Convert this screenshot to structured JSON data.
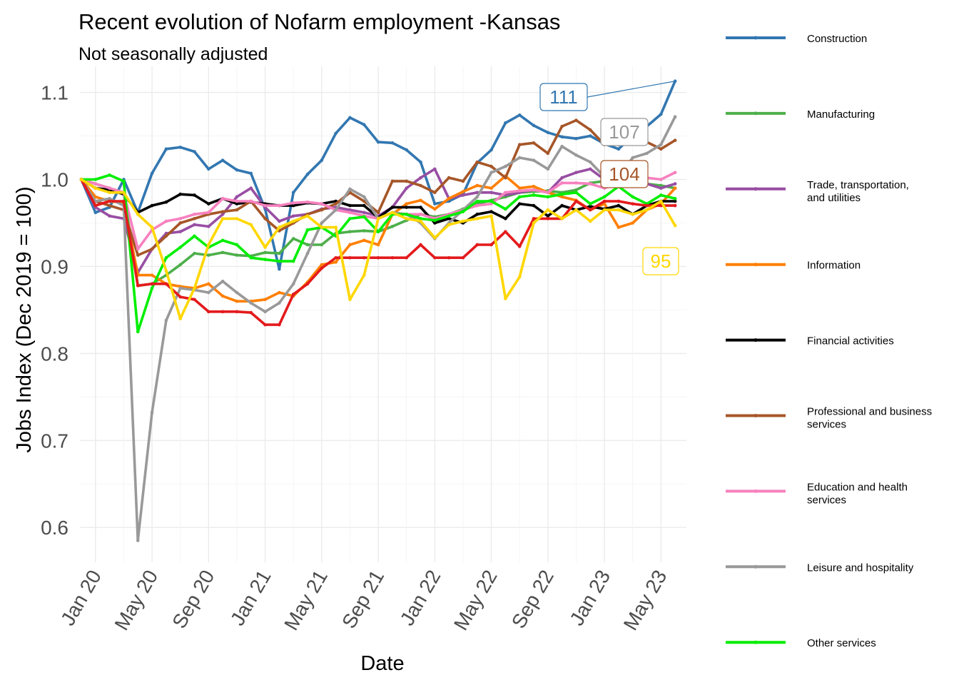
{
  "chart_data": {
    "type": "line",
    "title": "Recent evolution of Nofarm employment -Kansas",
    "subtitle": "Not seasonally adjusted",
    "xlabel": "Date",
    "ylabel": "Jobs Index (Dec 2019 = 100)",
    "ylim": [
      0.56,
      1.13
    ],
    "yticks": [
      0.6,
      0.7,
      0.8,
      0.9,
      1.0,
      1.1
    ],
    "ytick_labels": [
      "0.6",
      "0.7",
      "0.8",
      "0.9",
      "1.0",
      "1.1"
    ],
    "xticks": [
      1,
      5,
      9,
      13,
      17,
      21,
      25,
      29,
      33,
      37,
      41
    ],
    "xtick_labels": [
      "Jan 20",
      "May 20",
      "Sep 20",
      "Jan 21",
      "May 21",
      "Sep 21",
      "Jan 22",
      "May 22",
      "Sep 22",
      "Jan 23",
      "May 23"
    ],
    "xlim": [
      -0.1,
      42.8
    ],
    "x_index": "0 = Dec 2019, 1 = Jan 2020, monthly through 42 = Jun 2023",
    "grid": true,
    "legend_position": "right",
    "series": [
      {
        "name": "Construction",
        "color": "#3277B1",
        "end_label": "111",
        "values": [
          1.0,
          0.962,
          0.968,
          1.0,
          0.962,
          1.007,
          1.035,
          1.037,
          1.032,
          1.012,
          1.022,
          1.011,
          1.007,
          0.966,
          0.897,
          0.985,
          1.006,
          1.022,
          1.053,
          1.071,
          1.063,
          1.043,
          1.042,
          1.034,
          1.02,
          0.972,
          0.975,
          0.983,
          1.019,
          1.034,
          1.065,
          1.074,
          1.062,
          1.054,
          1.049,
          1.047,
          1.05,
          1.041,
          1.035,
          1.05,
          1.061,
          1.075,
          1.113
        ]
      },
      {
        "name": "Manufacturing",
        "color": "#4DAF4A",
        "end_label": "",
        "values": [
          1.0,
          0.995,
          0.99,
          0.985,
          0.878,
          0.88,
          0.89,
          0.902,
          0.915,
          0.913,
          0.916,
          0.913,
          0.912,
          0.916,
          0.915,
          0.932,
          0.925,
          0.925,
          0.938,
          0.94,
          0.941,
          0.94,
          0.946,
          0.953,
          0.96,
          0.957,
          0.96,
          0.966,
          0.972,
          0.976,
          0.98,
          0.985,
          0.986,
          0.987,
          0.985,
          0.988,
          0.996,
          0.998,
          0.998,
          0.998,
          0.995,
          0.993,
          0.99
        ]
      },
      {
        "name": "Trade, transportation, and utilities",
        "color": "#984EA3",
        "end_label": "",
        "values": [
          1.0,
          0.968,
          0.958,
          0.955,
          0.893,
          0.92,
          0.938,
          0.94,
          0.948,
          0.946,
          0.96,
          0.98,
          0.99,
          0.968,
          0.952,
          0.958,
          0.96,
          0.966,
          0.968,
          0.965,
          0.962,
          0.958,
          0.968,
          0.99,
          1.002,
          1.012,
          0.978,
          0.982,
          0.985,
          0.985,
          0.982,
          0.985,
          0.988,
          0.985,
          1.002,
          1.008,
          1.012,
          1.0,
          0.995,
          0.998,
          0.995,
          0.99,
          0.995
        ]
      },
      {
        "name": "Information",
        "color": "#FF7F00",
        "end_label": "",
        "values": [
          1.0,
          0.98,
          0.975,
          0.973,
          0.89,
          0.89,
          0.88,
          0.877,
          0.875,
          0.88,
          0.866,
          0.86,
          0.86,
          0.862,
          0.87,
          0.866,
          0.882,
          0.902,
          0.905,
          0.925,
          0.93,
          0.925,
          0.96,
          0.972,
          0.976,
          0.966,
          0.978,
          0.986,
          0.993,
          0.99,
          1.004,
          0.99,
          0.992,
          0.985,
          0.98,
          0.976,
          0.965,
          0.972,
          0.945,
          0.95,
          0.965,
          0.972,
          0.99
        ]
      },
      {
        "name": "Financial activities",
        "color": "#000000",
        "end_label": "",
        "values": [
          1.0,
          0.99,
          0.988,
          0.983,
          0.962,
          0.97,
          0.974,
          0.983,
          0.982,
          0.972,
          0.978,
          0.972,
          0.974,
          0.972,
          0.97,
          0.97,
          0.973,
          0.972,
          0.975,
          0.97,
          0.97,
          0.956,
          0.968,
          0.968,
          0.968,
          0.95,
          0.955,
          0.95,
          0.96,
          0.963,
          0.955,
          0.972,
          0.97,
          0.958,
          0.97,
          0.965,
          0.969,
          0.966,
          0.97,
          0.96,
          0.97,
          0.975,
          0.975
        ]
      },
      {
        "name": "Professional and business services",
        "color": "#A65628",
        "end_label": "104",
        "values": [
          1.0,
          0.975,
          0.97,
          0.965,
          0.913,
          0.92,
          0.935,
          0.95,
          0.955,
          0.96,
          0.963,
          0.965,
          0.975,
          0.955,
          0.941,
          0.95,
          0.96,
          0.965,
          0.972,
          0.985,
          0.975,
          0.962,
          0.998,
          0.998,
          0.993,
          0.985,
          1.002,
          0.998,
          1.02,
          1.015,
          1.002,
          1.04,
          1.042,
          1.03,
          1.061,
          1.068,
          1.057,
          1.04,
          1.04,
          1.044,
          1.043,
          1.035,
          1.045
        ]
      },
      {
        "name": "Education and health services",
        "color": "#F781BF",
        "end_label": "",
        "values": [
          1.0,
          0.995,
          0.99,
          0.985,
          0.92,
          0.942,
          0.952,
          0.955,
          0.96,
          0.962,
          0.978,
          0.975,
          0.975,
          0.97,
          0.97,
          0.973,
          0.974,
          0.972,
          0.965,
          0.962,
          0.958,
          0.955,
          0.962,
          0.96,
          0.96,
          0.955,
          0.96,
          0.965,
          0.97,
          0.972,
          0.985,
          0.987,
          0.988,
          0.985,
          0.996,
          0.996,
          0.995,
          0.99,
          0.995,
          1.0,
          1.002,
          1.0,
          1.008
        ]
      },
      {
        "name": "Leisure and hospitality",
        "color": "#999999",
        "end_label": "107",
        "values": [
          1.0,
          0.975,
          0.978,
          0.97,
          0.585,
          0.732,
          0.838,
          0.875,
          0.873,
          0.87,
          0.883,
          0.87,
          0.858,
          0.848,
          0.858,
          0.88,
          0.915,
          0.95,
          0.965,
          0.989,
          0.98,
          0.955,
          0.962,
          0.96,
          0.95,
          0.932,
          0.95,
          0.965,
          0.98,
          1.008,
          1.015,
          1.025,
          1.022,
          1.012,
          1.038,
          1.028,
          1.02,
          1.003,
          1.003,
          1.025,
          1.03,
          1.04,
          1.072
        ]
      },
      {
        "name": "Other services",
        "color": "#00EE00",
        "end_label": "",
        "values": [
          1.0,
          1.0,
          1.005,
          0.998,
          0.825,
          0.875,
          0.91,
          0.922,
          0.935,
          0.922,
          0.93,
          0.925,
          0.91,
          0.908,
          0.906,
          0.906,
          0.942,
          0.945,
          0.935,
          0.955,
          0.957,
          0.94,
          0.96,
          0.96,
          0.955,
          0.953,
          0.958,
          0.963,
          0.975,
          0.975,
          0.966,
          0.98,
          0.982,
          0.98,
          0.983,
          0.985,
          0.972,
          0.98,
          0.992,
          0.98,
          0.972,
          0.982,
          0.978
        ]
      },
      {
        "name": "",
        "color": "#E41A1C",
        "end_label": "",
        "values": [
          1.0,
          0.97,
          0.975,
          0.975,
          0.878,
          0.88,
          0.88,
          0.865,
          0.862,
          0.848,
          0.848,
          0.848,
          0.847,
          0.833,
          0.833,
          0.868,
          0.88,
          0.898,
          0.91,
          0.91,
          0.91,
          0.91,
          0.91,
          0.91,
          0.925,
          0.91,
          0.91,
          0.91,
          0.925,
          0.925,
          0.94,
          0.923,
          0.955,
          0.955,
          0.955,
          0.975,
          0.965,
          0.975,
          0.975,
          0.972,
          0.97,
          0.97,
          0.97
        ]
      },
      {
        "name": "",
        "color": "#FFD700",
        "end_label": "95",
        "values": [
          1.0,
          0.99,
          0.985,
          0.985,
          0.96,
          0.945,
          0.895,
          0.84,
          0.875,
          0.925,
          0.955,
          0.955,
          0.948,
          0.922,
          0.945,
          0.952,
          0.958,
          0.945,
          0.945,
          0.862,
          0.89,
          0.955,
          0.962,
          0.955,
          0.952,
          0.933,
          0.948,
          0.952,
          0.955,
          0.958,
          0.863,
          0.888,
          0.95,
          0.965,
          0.955,
          0.965,
          0.952,
          0.965,
          0.965,
          0.96,
          0.965,
          0.975,
          0.947
        ]
      }
    ],
    "legend": [
      {
        "label": "Construction",
        "color": "#3277B1"
      },
      {
        "label": "Manufacturing",
        "color": "#4DAF4A"
      },
      {
        "label": "Trade, transportation,\nand utilities",
        "color": "#984EA3"
      },
      {
        "label": "Information",
        "color": "#FF7F00"
      },
      {
        "label": "Financial activities",
        "color": "#000000"
      },
      {
        "label": "Professional and business\nservices",
        "color": "#A65628"
      },
      {
        "label": "Education and health\nservices",
        "color": "#F781BF"
      },
      {
        "label": "Leisure and hospitality",
        "color": "#999999"
      },
      {
        "label": "Other services",
        "color": "#00EE00"
      }
    ]
  }
}
